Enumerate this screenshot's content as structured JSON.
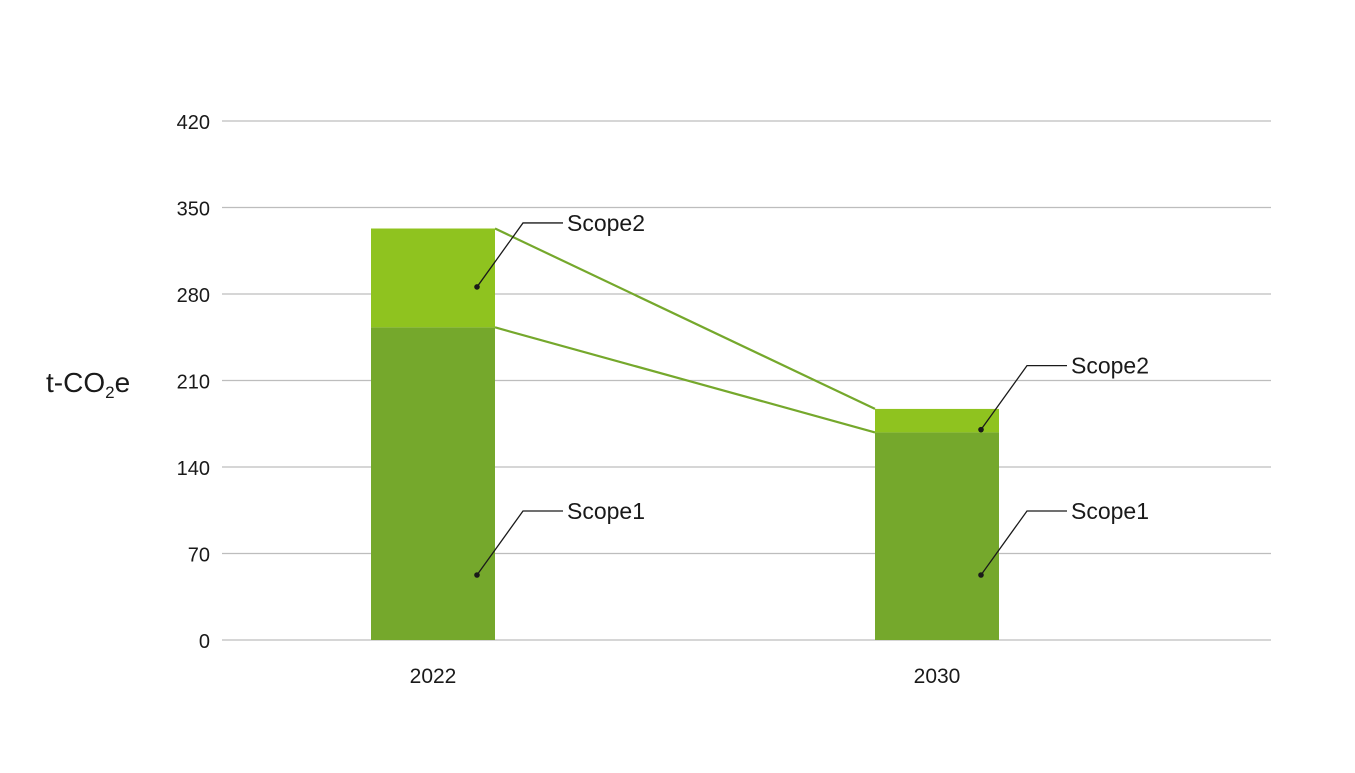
{
  "chart_data": {
    "type": "bar",
    "stacked": true,
    "categories": [
      "2022",
      "2030"
    ],
    "series": [
      {
        "name": "Scope1",
        "values": [
          253,
          168
        ],
        "color": "#75a82c"
      },
      {
        "name": "Scope2",
        "values": [
          80,
          19
        ],
        "color": "#8fc31f"
      }
    ],
    "ylabel": {
      "main": "t-CO",
      "sub": "2",
      "tail": "e"
    },
    "ylim": [
      0,
      420
    ],
    "yticks": [
      0,
      70,
      140,
      210,
      280,
      350,
      420
    ],
    "grid": true,
    "connector_lines": true,
    "connector_color": "#75a82c",
    "annotations": [
      "Scope1",
      "Scope2"
    ]
  }
}
